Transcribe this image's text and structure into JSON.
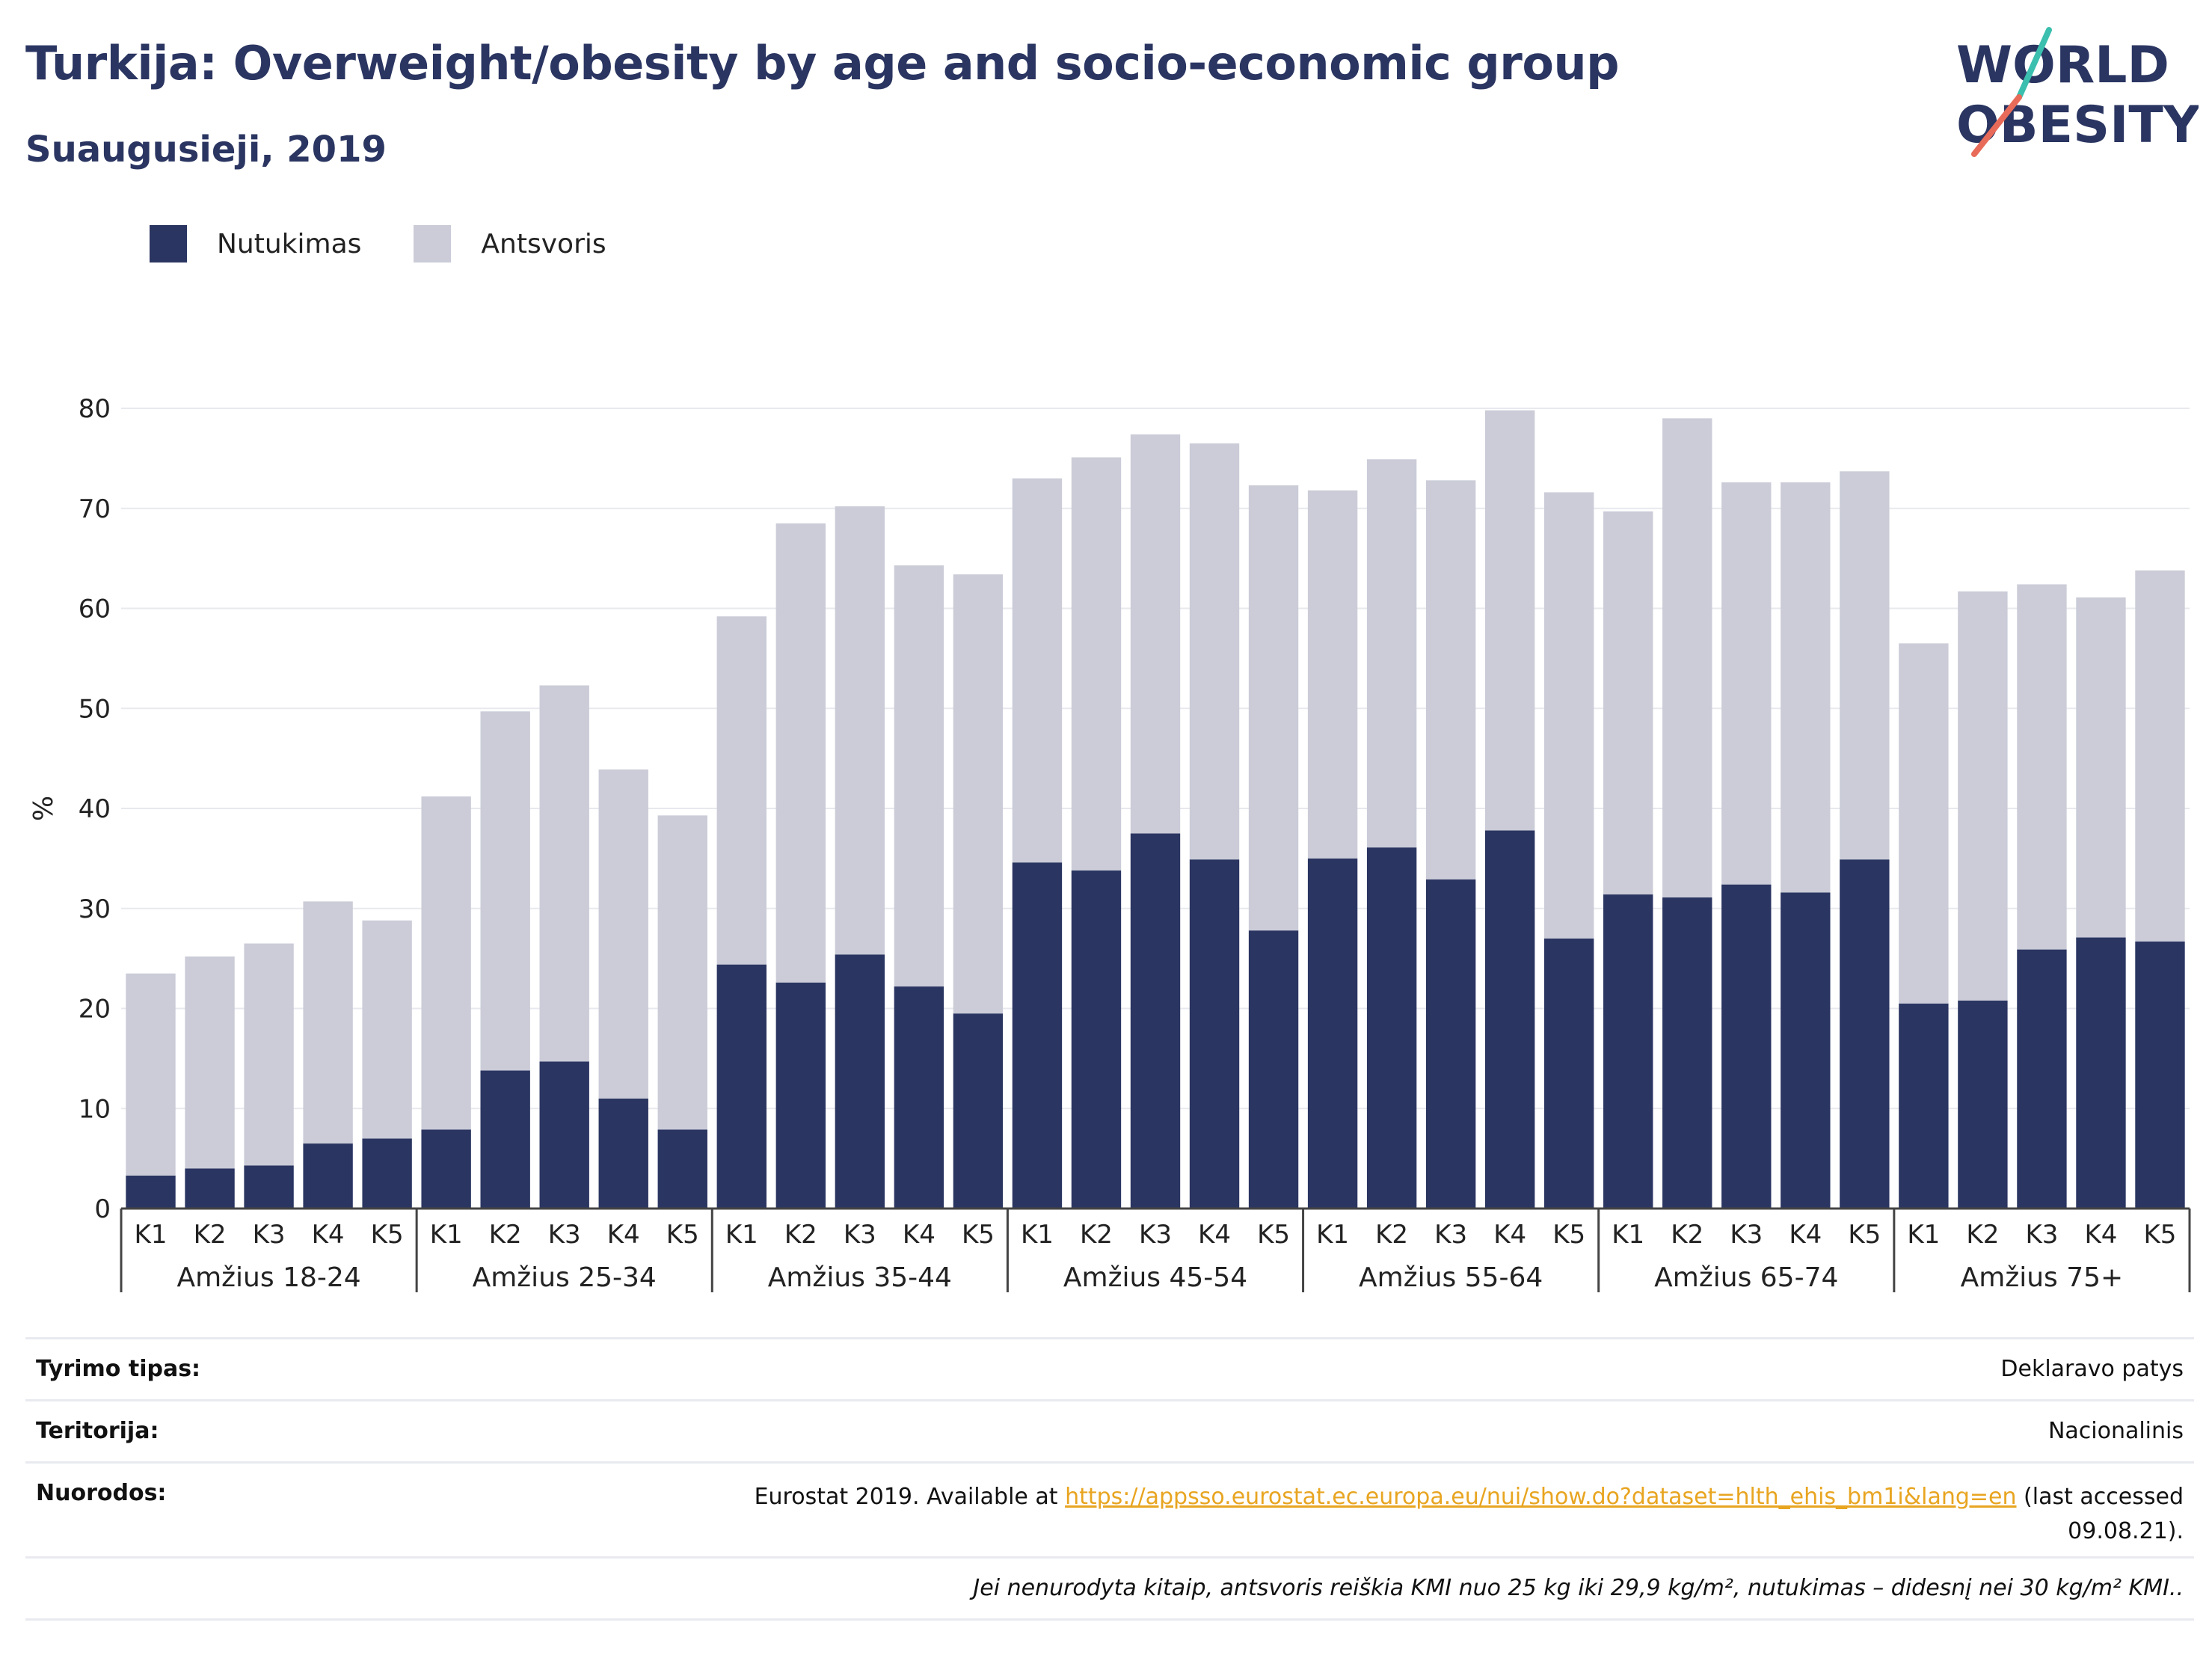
{
  "header": {
    "title": "Turkija: Overweight/obesity by age and socio-economic group",
    "subtitle": "Suaugusieji, 2019"
  },
  "logo": {
    "line1": "WORLD",
    "line2": "OBESITY"
  },
  "colors": {
    "obesity": "#2a3561",
    "overweight": "#cbccd8",
    "title": "#2a3561",
    "link": "#e8a521"
  },
  "chart_data": {
    "type": "bar",
    "stacked": true,
    "ylabel": "%",
    "ylim": [
      0,
      80
    ],
    "yticks": [
      0,
      10,
      20,
      30,
      40,
      50,
      60,
      70,
      80
    ],
    "grid": true,
    "legend_position": "top-left",
    "subcategories": [
      "K1",
      "K2",
      "K3",
      "K4",
      "K5"
    ],
    "groups": [
      "Amžius 18-24",
      "Amžius 25-34",
      "Amžius 35-44",
      "Amžius 45-54",
      "Amžius 55-64",
      "Amžius 65-74",
      "Amžius 75+"
    ],
    "series": [
      {
        "name": "Nutukimas",
        "color": "#2a3561",
        "values": [
          3.3,
          4.0,
          4.3,
          6.5,
          7.0,
          7.9,
          13.8,
          14.7,
          11.0,
          7.9,
          24.4,
          22.6,
          25.4,
          22.2,
          19.5,
          34.6,
          33.8,
          37.5,
          34.9,
          27.8,
          35.0,
          36.1,
          32.9,
          37.8,
          27.0,
          31.4,
          31.1,
          32.4,
          31.6,
          34.9,
          20.5,
          20.8,
          25.9,
          27.1,
          26.7
        ]
      },
      {
        "name": "Antsvoris",
        "color": "#cbccd8",
        "values": [
          20.2,
          21.2,
          22.2,
          24.2,
          21.8,
          33.3,
          35.9,
          37.6,
          32.9,
          31.4,
          34.8,
          45.9,
          44.8,
          42.1,
          43.9,
          38.4,
          41.3,
          39.9,
          41.6,
          44.5,
          36.8,
          38.8,
          39.9,
          42.0,
          44.6,
          38.3,
          47.9,
          40.2,
          41.0,
          38.8,
          36.0,
          40.9,
          36.5,
          34.0,
          37.1
        ]
      }
    ]
  },
  "meta": {
    "rows": [
      {
        "label": "Tyrimo tipas:",
        "value": "Deklaravo patys"
      },
      {
        "label": "Teritorija:",
        "value": "Nacionalinis"
      }
    ],
    "source": {
      "label": "Nuorodos:",
      "prefix": "Eurostat 2019. Available at ",
      "link": "https://appsso.eurostat.ec.europa.eu/nui/show.do?dataset=hlth_ehis_bm1i&lang=en",
      "suffix": " (last accessed",
      "line2": "09.08.21)."
    },
    "note": "Jei nenurodyta kitaip, antsvoris reiškia KMI nuo 25 kg iki 29,9 kg/m², nutukimas – didesnį nei 30 kg/m² KMI.."
  }
}
